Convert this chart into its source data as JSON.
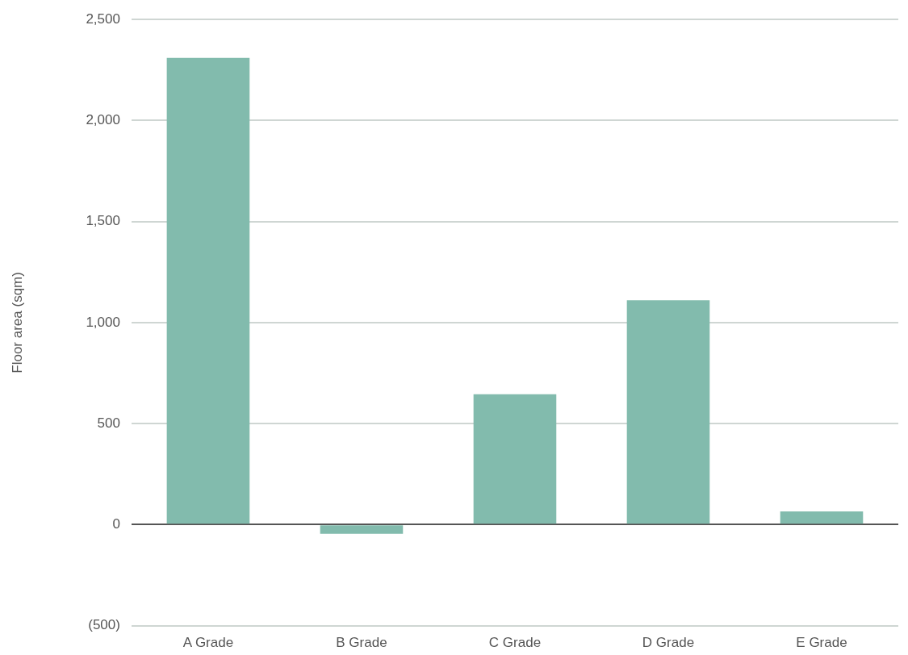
{
  "chart_data": {
    "type": "bar",
    "ylabel": "Floor area (sqm)",
    "categories": [
      "A Grade",
      "B Grade",
      "C Grade",
      "D Grade",
      "E Grade"
    ],
    "values": [
      2310,
      -45,
      645,
      1110,
      65
    ],
    "color": "#82bbad",
    "ylim": [
      -500,
      2500
    ],
    "yticks": [
      {
        "value": -500,
        "label": "(500)"
      },
      0,
      500,
      {
        "value": 1000,
        "label": "1,000"
      },
      {
        "value": 1500,
        "label": "1,500"
      },
      {
        "value": 2000,
        "label": "2,000"
      },
      {
        "value": 2500,
        "label": "2,500"
      }
    ],
    "grid": "y",
    "legend": false
  }
}
